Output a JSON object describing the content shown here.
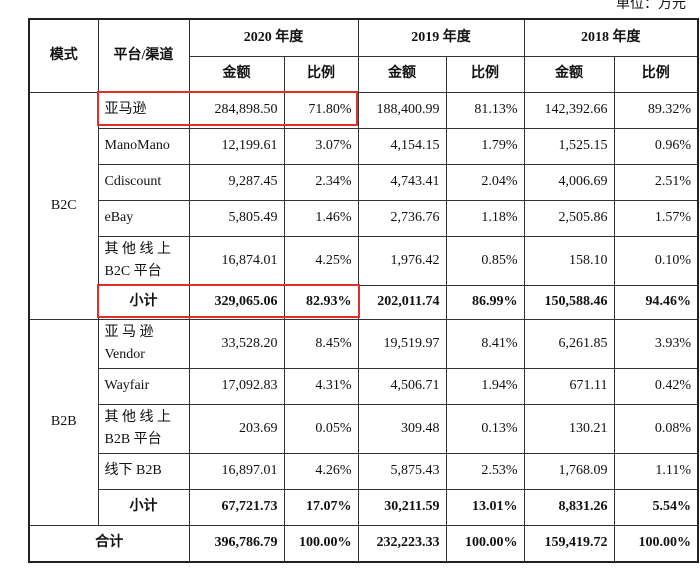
{
  "unit": "单位：万元",
  "header": {
    "mode": "模式",
    "platform": "平台/渠道",
    "years": [
      "2020 年度",
      "2019 年度",
      "2018 年度"
    ],
    "amount": "金额",
    "ratio": "比例"
  },
  "sections": [
    {
      "mode": "B2C",
      "rows": [
        {
          "platform": "亚马逊",
          "cells": [
            "284,898.50",
            "71.80%",
            "188,400.99",
            "81.13%",
            "142,392.66",
            "89.32%"
          ]
        },
        {
          "platform": "ManoMano",
          "cells": [
            "12,199.61",
            "3.07%",
            "4,154.15",
            "1.79%",
            "1,525.15",
            "0.96%"
          ]
        },
        {
          "platform": "Cdiscount",
          "cells": [
            "9,287.45",
            "2.34%",
            "4,743.41",
            "2.04%",
            "4,006.69",
            "2.51%"
          ]
        },
        {
          "platform": "eBay",
          "cells": [
            "5,805.49",
            "1.46%",
            "2,736.76",
            "1.18%",
            "2,505.86",
            "1.57%"
          ]
        },
        {
          "platform": "其 他 线 上\nB2C 平台",
          "cells": [
            "16,874.01",
            "4.25%",
            "1,976.42",
            "0.85%",
            "158.10",
            "0.10%"
          ]
        }
      ],
      "subtotal": {
        "label": "小计",
        "cells": [
          "329,065.06",
          "82.93%",
          "202,011.74",
          "86.99%",
          "150,588.46",
          "94.46%"
        ]
      }
    },
    {
      "mode": "B2B",
      "rows": [
        {
          "platform": "亚 马 逊\nVendor",
          "cells": [
            "33,528.20",
            "8.45%",
            "19,519.97",
            "8.41%",
            "6,261.85",
            "3.93%"
          ]
        },
        {
          "platform": "Wayfair",
          "cells": [
            "17,092.83",
            "4.31%",
            "4,506.71",
            "1.94%",
            "671.11",
            "0.42%"
          ]
        },
        {
          "platform": "其 他 线 上\nB2B 平台",
          "cells": [
            "203.69",
            "0.05%",
            "309.48",
            "0.13%",
            "130.21",
            "0.08%"
          ]
        },
        {
          "platform": "线下 B2B",
          "cells": [
            "16,897.01",
            "4.26%",
            "5,875.43",
            "2.53%",
            "1,768.09",
            "1.11%"
          ]
        }
      ],
      "subtotal": {
        "label": "小计",
        "cells": [
          "67,721.73",
          "17.07%",
          "30,211.59",
          "13.01%",
          "8,831.26",
          "5.54%"
        ]
      }
    }
  ],
  "total": {
    "label": "合计",
    "cells": [
      "396,786.79",
      "100.00%",
      "232,223.33",
      "100.00%",
      "159,419.72",
      "100.00%"
    ]
  }
}
